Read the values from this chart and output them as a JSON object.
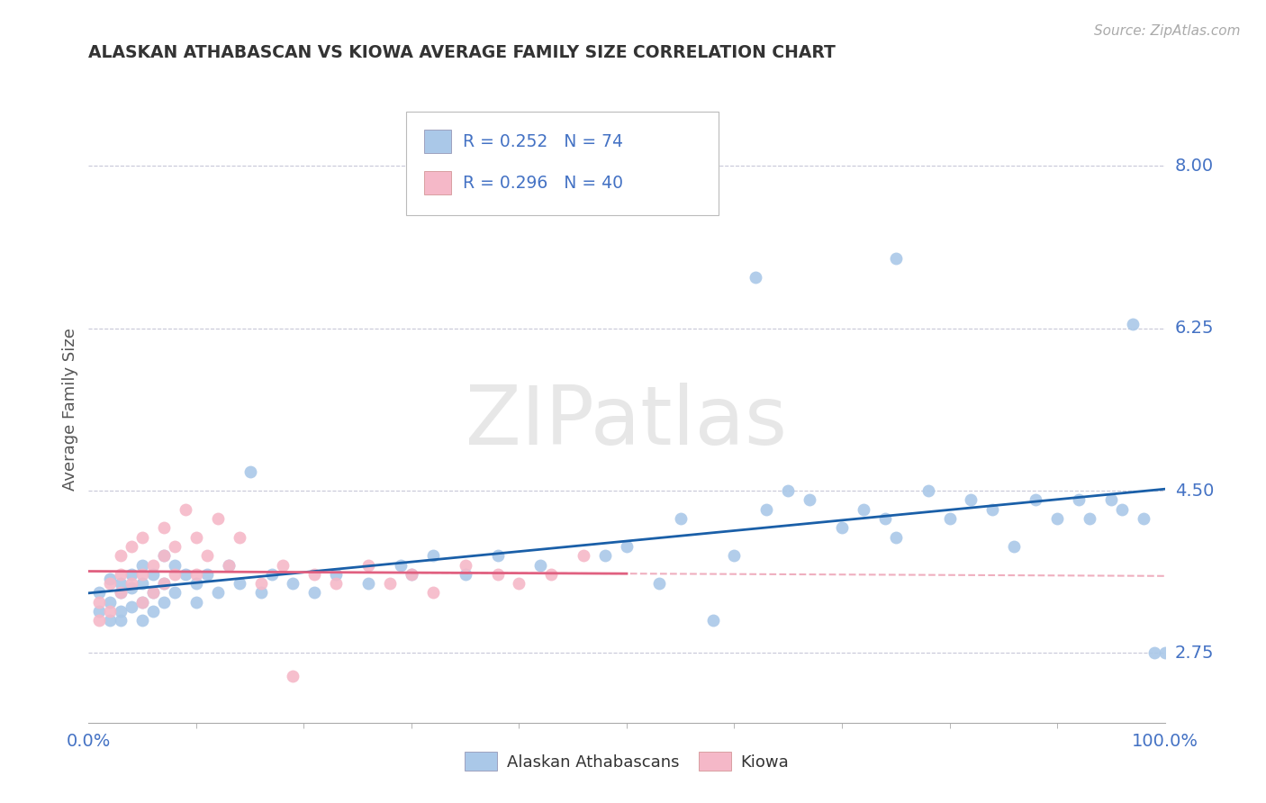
{
  "title": "ALASKAN ATHABASCAN VS KIOWA AVERAGE FAMILY SIZE CORRELATION CHART",
  "source_text": "Source: ZipAtlas.com",
  "ylabel": "Average Family Size",
  "xlim": [
    0.0,
    1.0
  ],
  "ylim": [
    2.0,
    8.75
  ],
  "yticks": [
    2.75,
    4.5,
    6.25,
    8.0
  ],
  "xticks": [
    0.0,
    1.0
  ],
  "xticklabels": [
    "0.0%",
    "100.0%"
  ],
  "watermark": "ZIPatlas",
  "blue_R": 0.252,
  "blue_N": 74,
  "pink_R": 0.296,
  "pink_N": 40,
  "blue_color": "#aac8e8",
  "pink_color": "#f5b8c8",
  "blue_line_color": "#1a5fa8",
  "pink_line_color": "#e06080",
  "grid_color": "#c8c8d8",
  "background_color": "#ffffff",
  "right_label_color": "#4472C4",
  "legend_text_color": "#4472C4",
  "blue_x": [
    0.01,
    0.01,
    0.02,
    0.02,
    0.02,
    0.03,
    0.03,
    0.03,
    0.03,
    0.04,
    0.04,
    0.04,
    0.05,
    0.05,
    0.05,
    0.05,
    0.06,
    0.06,
    0.06,
    0.07,
    0.07,
    0.07,
    0.08,
    0.08,
    0.09,
    0.1,
    0.1,
    0.11,
    0.12,
    0.13,
    0.14,
    0.15,
    0.16,
    0.17,
    0.19,
    0.21,
    0.23,
    0.26,
    0.29,
    0.3,
    0.32,
    0.35,
    0.38,
    0.42,
    0.48,
    0.5,
    0.53,
    0.55,
    0.58,
    0.6,
    0.63,
    0.65,
    0.67,
    0.7,
    0.72,
    0.74,
    0.75,
    0.78,
    0.8,
    0.82,
    0.84,
    0.86,
    0.88,
    0.9,
    0.92,
    0.93,
    0.95,
    0.96,
    0.97,
    0.98,
    0.99,
    1.0,
    0.62,
    0.75
  ],
  "blue_y": [
    3.2,
    3.4,
    3.1,
    3.3,
    3.55,
    3.2,
    3.4,
    3.1,
    3.5,
    3.25,
    3.45,
    3.6,
    3.1,
    3.3,
    3.5,
    3.7,
    3.2,
    3.4,
    3.6,
    3.3,
    3.5,
    3.8,
    3.4,
    3.7,
    3.6,
    3.3,
    3.5,
    3.6,
    3.4,
    3.7,
    3.5,
    4.7,
    3.4,
    3.6,
    3.5,
    3.4,
    3.6,
    3.5,
    3.7,
    3.6,
    3.8,
    3.6,
    3.8,
    3.7,
    3.8,
    3.9,
    3.5,
    4.2,
    3.1,
    3.8,
    4.3,
    4.5,
    4.4,
    4.1,
    4.3,
    4.2,
    4.0,
    4.5,
    4.2,
    4.4,
    4.3,
    3.9,
    4.4,
    4.2,
    4.4,
    4.2,
    4.4,
    4.3,
    6.3,
    4.2,
    2.75,
    2.75,
    6.8,
    7.0
  ],
  "pink_x": [
    0.01,
    0.01,
    0.02,
    0.02,
    0.03,
    0.03,
    0.03,
    0.04,
    0.04,
    0.05,
    0.05,
    0.05,
    0.06,
    0.06,
    0.07,
    0.07,
    0.07,
    0.08,
    0.08,
    0.09,
    0.1,
    0.1,
    0.11,
    0.12,
    0.13,
    0.14,
    0.16,
    0.18,
    0.19,
    0.21,
    0.23,
    0.26,
    0.28,
    0.3,
    0.32,
    0.35,
    0.38,
    0.4,
    0.43,
    0.46
  ],
  "pink_y": [
    3.1,
    3.3,
    3.2,
    3.5,
    3.4,
    3.6,
    3.8,
    3.5,
    3.9,
    3.3,
    3.6,
    4.0,
    3.7,
    3.4,
    3.5,
    3.8,
    4.1,
    3.6,
    3.9,
    4.3,
    3.6,
    4.0,
    3.8,
    4.2,
    3.7,
    4.0,
    3.5,
    3.7,
    2.5,
    3.6,
    3.5,
    3.7,
    3.5,
    3.6,
    3.4,
    3.7,
    3.6,
    3.5,
    3.6,
    3.8
  ]
}
